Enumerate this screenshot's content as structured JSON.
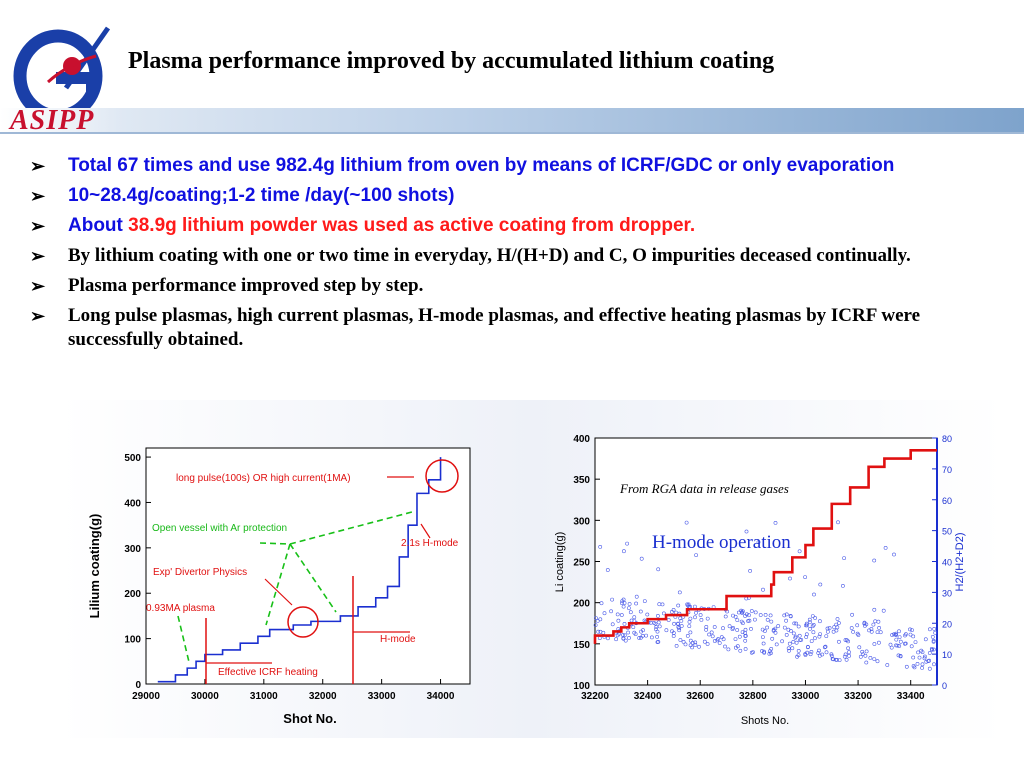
{
  "header": {
    "title": "Plasma performance improved by accumulated lithium coating",
    "org": "ASIPP"
  },
  "bullets": [
    {
      "text": "Total 67 times and use 982.4g lithium from oven by means of ICRF/GDC or only evaporation"
    },
    {
      "text": "10~28.4g/coating;1-2 time /day(~100 shots)"
    },
    {
      "prefix": "About ",
      "highlight": "38.9g lithium powder was used as active coating from dropper."
    },
    {
      "text": "By lithium coating with one or two time in everyday, H/(H+D) and C, O impurities deceased continually."
    },
    {
      "text": "Plasma performance improved step by step."
    },
    {
      "text": "Long pulse plasmas, high current plasmas, H-mode plasmas, and effective heating plasmas by ICRF were successfully obtained."
    }
  ],
  "colors": {
    "bullet_blue": "#1010e0",
    "highlight_red": "#ff1a1a",
    "logo_blue": "#1a3fa8",
    "logo_red": "#c8102e"
  },
  "chart_data": [
    {
      "type": "line",
      "xlabel": "Shot No.",
      "ylabel": "Lilium coating(g)",
      "xlim": [
        29000,
        34500
      ],
      "ylim": [
        0,
        520
      ],
      "xticks": [
        "29000",
        "30000",
        "31000",
        "32000",
        "33000",
        "34000"
      ],
      "yticks": [
        "0",
        "100",
        "200",
        "300",
        "400",
        "500"
      ],
      "x": [
        29200,
        29500,
        29700,
        29850,
        30000,
        30300,
        30600,
        30900,
        31100,
        31500,
        31800,
        32000,
        32300,
        32600,
        32900,
        33100,
        33300,
        33450,
        33600,
        33800,
        34000
      ],
      "y": [
        5,
        20,
        35,
        50,
        65,
        75,
        90,
        105,
        120,
        130,
        138,
        138,
        150,
        170,
        190,
        215,
        280,
        350,
        420,
        450,
        500
      ],
      "annotations": [
        "long pulse(100s) OR high current(1MA)",
        "Open vessel with Ar protection",
        "2.1s H-mode",
        "Exp' Divertor Physics",
        "0.93MA plasma",
        "H-mode",
        "Effective ICRF heating"
      ]
    },
    {
      "type": "line",
      "xlabel": "Shots No.",
      "ylabel": "Li coating(g)",
      "y2label": "H2/(H2+D2)",
      "xlim": [
        32200,
        33500
      ],
      "ylim": [
        100,
        400
      ],
      "y2lim": [
        0,
        80
      ],
      "xticks": [
        "32200",
        "32400",
        "32600",
        "32800",
        "33000",
        "33200",
        "33400"
      ],
      "yticks": [
        "100",
        "150",
        "200",
        "250",
        "300",
        "350",
        "400"
      ],
      "y2ticks": [
        "0",
        "10",
        "20",
        "30",
        "40",
        "50",
        "60",
        "70",
        "80"
      ],
      "series": [
        {
          "values_x": [
            32200,
            32270,
            32300,
            32330,
            32400,
            32470,
            32550,
            32700,
            32870,
            32880,
            32950,
            33000,
            33030,
            33100,
            33170,
            33240,
            33300,
            33400,
            33480
          ],
          "values_y": [
            150,
            160,
            165,
            170,
            175,
            180,
            185,
            192,
            208,
            222,
            237,
            255,
            270,
            290,
            320,
            340,
            365,
            375,
            385
          ]
        }
      ],
      "annotations": [
        "From RGA data in release gases",
        "H-mode operation"
      ]
    }
  ]
}
